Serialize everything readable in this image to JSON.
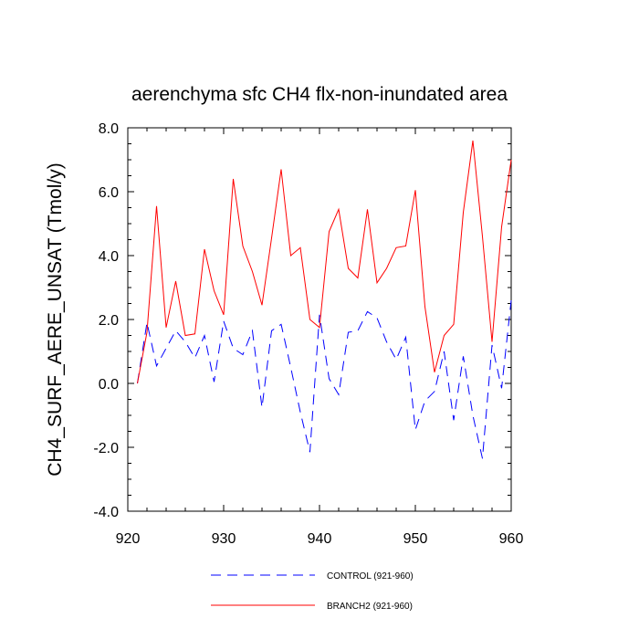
{
  "chart_data": {
    "type": "line",
    "title": "aerenchyma sfc CH4 flx-non-inundated area",
    "xlabel": "",
    "ylabel": "CH4_SURF_AERE_UNSAT  (Tmol/y)",
    "xlim": [
      920,
      960
    ],
    "ylim": [
      -4.0,
      8.0
    ],
    "x_ticks": [
      920,
      930,
      940,
      950,
      960
    ],
    "x_tick_labels": [
      "920",
      "930",
      "940",
      "950",
      "960"
    ],
    "y_ticks": [
      -4.0,
      -2.0,
      0.0,
      2.0,
      4.0,
      6.0,
      8.0
    ],
    "y_tick_labels": [
      "-4.0",
      "-2.0",
      "0.0",
      "2.0",
      "4.0",
      "6.0",
      "8.0"
    ],
    "x": [
      921,
      922,
      923,
      924,
      925,
      926,
      927,
      928,
      929,
      930,
      931,
      932,
      933,
      934,
      935,
      936,
      937,
      938,
      939,
      940,
      941,
      942,
      943,
      944,
      945,
      946,
      947,
      948,
      949,
      950,
      951,
      952,
      953,
      954,
      955,
      956,
      957,
      958,
      959,
      960
    ],
    "series": [
      {
        "name": "CONTROL (921-960)",
        "color": "#0000ff",
        "style": "dashed",
        "values": [
          0.0,
          1.9,
          0.55,
          1.1,
          1.65,
          1.3,
          0.8,
          1.5,
          0.05,
          1.95,
          1.1,
          0.9,
          1.65,
          -0.75,
          1.65,
          1.85,
          0.5,
          -0.9,
          -2.15,
          2.15,
          0.15,
          -0.35,
          1.6,
          1.65,
          2.25,
          2.05,
          1.3,
          0.75,
          1.45,
          -1.45,
          -0.55,
          -0.25,
          1.0,
          -1.15,
          0.85,
          -1.0,
          -2.35,
          1.2,
          -0.15,
          2.6
        ]
      },
      {
        "name": "BRANCH2 (921-960)",
        "color": "#ff0000",
        "style": "solid",
        "values": [
          0.0,
          1.6,
          5.55,
          1.75,
          3.2,
          1.5,
          1.55,
          4.2,
          2.9,
          2.15,
          6.4,
          4.3,
          3.5,
          2.45,
          4.55,
          6.7,
          4.0,
          4.25,
          2.0,
          1.75,
          4.75,
          5.45,
          3.6,
          3.3,
          5.45,
          3.15,
          3.6,
          4.25,
          4.3,
          6.05,
          2.4,
          0.35,
          1.5,
          1.85,
          5.35,
          7.6,
          4.6,
          1.3,
          4.9,
          7.0
        ]
      }
    ],
    "legend_position": "bottom"
  }
}
